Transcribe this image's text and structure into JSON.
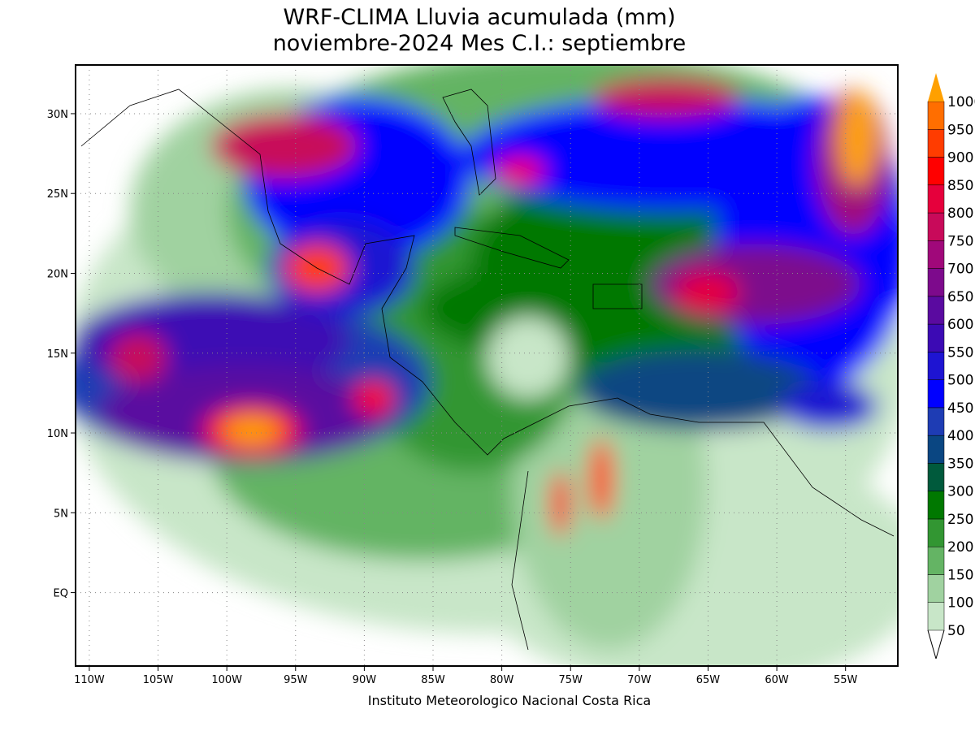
{
  "header": {
    "title": "WRF-CLIMA Lluvia acumulada (mm)",
    "subtitle": "noviembre-2024 Mes C.I.: septiembre"
  },
  "footer": "Instituto Meteorologico Nacional Costa Rica",
  "map": {
    "lonlim": [
      -111,
      -51.2
    ],
    "latlim": [
      -4.6,
      33.05
    ],
    "lonticks": [
      {
        "value": -110,
        "label": "110W"
      },
      {
        "value": -105,
        "label": "105W"
      },
      {
        "value": -100,
        "label": "100W"
      },
      {
        "value": -95,
        "label": "95W"
      },
      {
        "value": -90,
        "label": "90W"
      },
      {
        "value": -85,
        "label": "85W"
      },
      {
        "value": -80,
        "label": "80W"
      },
      {
        "value": -75,
        "label": "75W"
      },
      {
        "value": -70,
        "label": "70W"
      },
      {
        "value": -65,
        "label": "65W"
      },
      {
        "value": -60,
        "label": "60W"
      },
      {
        "value": -55,
        "label": "55W"
      }
    ],
    "latticks": [
      {
        "value": 0,
        "label": "EQ"
      },
      {
        "value": 5,
        "label": "5N"
      },
      {
        "value": 10,
        "label": "10N"
      },
      {
        "value": 15,
        "label": "15N"
      },
      {
        "value": 20,
        "label": "20N"
      },
      {
        "value": 25,
        "label": "25N"
      },
      {
        "value": 30,
        "label": "30N"
      }
    ],
    "grid": true
  },
  "colorbar": {
    "levels": [
      50,
      100,
      150,
      200,
      250,
      300,
      350,
      400,
      450,
      500,
      550,
      600,
      650,
      700,
      750,
      800,
      850,
      900,
      950,
      1000
    ],
    "colors": [
      "#c8e6c8",
      "#a0d2a0",
      "#64b464",
      "#329632",
      "#007800",
      "#005a3c",
      "#0a4682",
      "#1e3cb4",
      "#0000ff",
      "#1e14d2",
      "#3c0ab4",
      "#5a0aa0",
      "#7d0a8c",
      "#a0087a",
      "#c80a5a",
      "#e6003c",
      "#ff0000",
      "#ff3c00",
      "#ff6e00",
      "#ffa000"
    ]
  }
}
